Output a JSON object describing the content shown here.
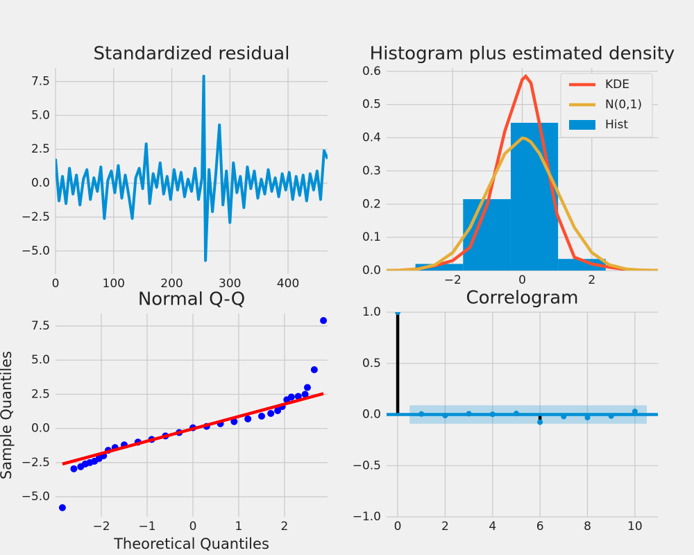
{
  "chart_data": [
    {
      "type": "line",
      "title": "Standardized residual",
      "color": "#008fd5",
      "x": [
        0,
        6,
        12,
        18,
        24,
        30,
        36,
        42,
        48,
        54,
        60,
        66,
        72,
        78,
        84,
        90,
        96,
        102,
        108,
        114,
        120,
        126,
        132,
        138,
        144,
        150,
        156,
        162,
        168,
        174,
        180,
        186,
        192,
        198,
        204,
        210,
        216,
        222,
        228,
        234,
        240,
        246,
        252,
        255,
        258,
        264,
        270,
        276,
        282,
        288,
        294,
        300,
        306,
        312,
        318,
        324,
        330,
        336,
        342,
        348,
        354,
        360,
        366,
        372,
        378,
        384,
        390,
        396,
        402,
        408,
        414,
        420,
        426,
        432,
        438,
        444,
        450,
        456,
        462,
        468
      ],
      "values": [
        1.8,
        -1.3,
        0.5,
        -1.5,
        1.1,
        -0.8,
        0.6,
        -1.6,
        0.3,
        1.0,
        -1.2,
        0.4,
        -0.6,
        1.2,
        -2.6,
        0.2,
        0.9,
        -0.7,
        1.3,
        -1.1,
        0.6,
        -0.9,
        -2.6,
        0.4,
        1.1,
        -0.4,
        2.9,
        -1.5,
        0.7,
        -0.3,
        1.5,
        -0.8,
        0.5,
        -1.2,
        1.0,
        -0.5,
        0.8,
        -1.0,
        0.3,
        -0.6,
        1.1,
        -1.2,
        0.4,
        7.9,
        -5.7,
        1.0,
        -2.1,
        0.8,
        4.3,
        -1.6,
        0.9,
        -2.9,
        1.5,
        -0.7,
        0.5,
        -1.8,
        1.2,
        -0.4,
        0.9,
        -1.1,
        0.3,
        -0.8,
        1.0,
        -0.6,
        0.4,
        -1.0,
        0.7,
        -0.5,
        0.8,
        -1.2,
        0.5,
        -0.9,
        0.6,
        -1.3,
        0.7,
        -0.5,
        0.9,
        -1.2,
        2.4,
        1.8
      ],
      "xlim": [
        0,
        468
      ],
      "xticks": [
        0,
        100,
        200,
        300,
        400
      ],
      "ylim": [
        -6.7,
        8.5
      ],
      "yticks": [
        {
          "value": -5,
          "label": "−5.0"
        },
        {
          "value": -2.5,
          "label": "−2.5"
        },
        {
          "value": 0,
          "label": "0.0"
        },
        {
          "value": 2.5,
          "label": "2.5"
        },
        {
          "value": 5,
          "label": "5.0"
        },
        {
          "value": 7.5,
          "label": "7.5"
        }
      ],
      "grid": true
    },
    {
      "type": "hist",
      "title": "Histogram plus estimated density",
      "hist": {
        "name": "Hist",
        "color": "#008fd5",
        "bins": [
          -3.07,
          -1.7,
          -0.33,
          1.03,
          2.4
        ],
        "values": [
          0.02,
          0.215,
          0.445,
          0.035
        ]
      },
      "x": [
        -3.9,
        -3.5,
        -3,
        -2.5,
        -2,
        -1.5,
        -1,
        -0.5,
        0,
        0.1,
        0.25,
        0.5,
        1,
        1.5,
        2,
        2.5,
        3,
        3.5,
        3.9
      ],
      "series": [
        {
          "name": "KDE",
          "color": "#fc4f30",
          "values": [
            0.0002,
            0.001,
            0.005,
            0.015,
            0.03,
            0.07,
            0.2,
            0.42,
            0.575,
            0.585,
            0.565,
            0.44,
            0.17,
            0.04,
            0.02,
            0.01,
            0.003,
            0.001,
            0.0002
          ]
        },
        {
          "name": "N(0,1)",
          "color": "#e5ae38",
          "values": [
            0.0002,
            0.0009,
            0.0044,
            0.0175,
            0.054,
            0.1295,
            0.242,
            0.352,
            0.399,
            0.397,
            0.387,
            0.352,
            0.242,
            0.1295,
            0.054,
            0.0175,
            0.0044,
            0.0009,
            0.0002
          ]
        }
      ],
      "xlim": [
        -3.9,
        3.9
      ],
      "xticks": [
        {
          "value": -2,
          "label": "−2"
        },
        0,
        2
      ],
      "ylim": [
        0,
        0.61
      ],
      "yticks": [
        {
          "value": 0,
          "label": "0.0"
        },
        0.1,
        0.2,
        0.3,
        0.4,
        0.5,
        0.6
      ],
      "grid": true,
      "legend": "upper right"
    },
    {
      "type": "scatter",
      "title": "Normal Q-Q",
      "x_label": "Theoretical Quantiles",
      "y_label": "Sample Quantiles",
      "points": {
        "color": "#0000ff",
        "x": [
          -2.85,
          -2.6,
          -2.45,
          -2.35,
          -2.25,
          -2.15,
          -2.05,
          -1.95,
          -1.85,
          -1.7,
          -1.5,
          -1.2,
          -0.9,
          -0.6,
          -0.3,
          0,
          0.3,
          0.6,
          0.9,
          1.2,
          1.5,
          1.7,
          1.85,
          1.95,
          2.05,
          2.15,
          2.3,
          2.45,
          2.5,
          2.65,
          2.85
        ],
        "values": [
          -5.8,
          -2.95,
          -2.8,
          -2.6,
          -2.5,
          -2.4,
          -2.2,
          -2.0,
          -1.6,
          -1.4,
          -1.2,
          -1.0,
          -0.8,
          -0.55,
          -0.3,
          0.05,
          0.15,
          0.35,
          0.5,
          0.7,
          0.9,
          1.1,
          1.3,
          1.6,
          2.1,
          2.3,
          2.35,
          2.5,
          3.0,
          4.3,
          7.9
        ]
      },
      "fit": {
        "color": "#ff0000",
        "x": [
          -2.85,
          2.85
        ],
        "values": [
          -2.6,
          2.55
        ]
      },
      "xlim": [
        -3.0,
        2.94
      ],
      "xticks": [
        {
          "value": -2,
          "label": "−2"
        },
        {
          "value": -1,
          "label": "−1"
        },
        0,
        1,
        2
      ],
      "ylim": [
        -6.47,
        8.41
      ],
      "yticks": [
        {
          "value": -5,
          "label": "−5.0"
        },
        {
          "value": -2.5,
          "label": "−2.5"
        },
        {
          "value": 0,
          "label": "0.0"
        },
        {
          "value": 2.5,
          "label": "2.5"
        },
        {
          "value": 5,
          "label": "5.0"
        },
        {
          "value": 7.5,
          "label": "7.5"
        }
      ],
      "grid": true
    },
    {
      "type": "stem",
      "title": "Correlogram",
      "color": "#008fd5",
      "lags": [
        0,
        1,
        2,
        3,
        4,
        5,
        6,
        7,
        8,
        9,
        10
      ],
      "values": [
        1,
        0.005,
        -0.01,
        0.008,
        0.002,
        0.01,
        -0.075,
        -0.02,
        -0.03,
        -0.015,
        0.03
      ],
      "conf_x": [
        0.5,
        10.5
      ],
      "conf_lower": -0.09,
      "conf_upper": 0.09,
      "xlim": [
        -0.47,
        10.97
      ],
      "xticks": [
        0,
        2,
        4,
        6,
        8,
        10
      ],
      "ylim": [
        -1,
        1
      ],
      "yticks": [
        {
          "value": -1,
          "label": "−1.0"
        },
        {
          "value": -0.5,
          "label": "−0.5"
        },
        {
          "value": 0,
          "label": "0.0"
        },
        {
          "value": 0.5,
          "label": "0.5"
        },
        {
          "value": 1,
          "label": "1.0"
        }
      ],
      "grid": true
    }
  ]
}
